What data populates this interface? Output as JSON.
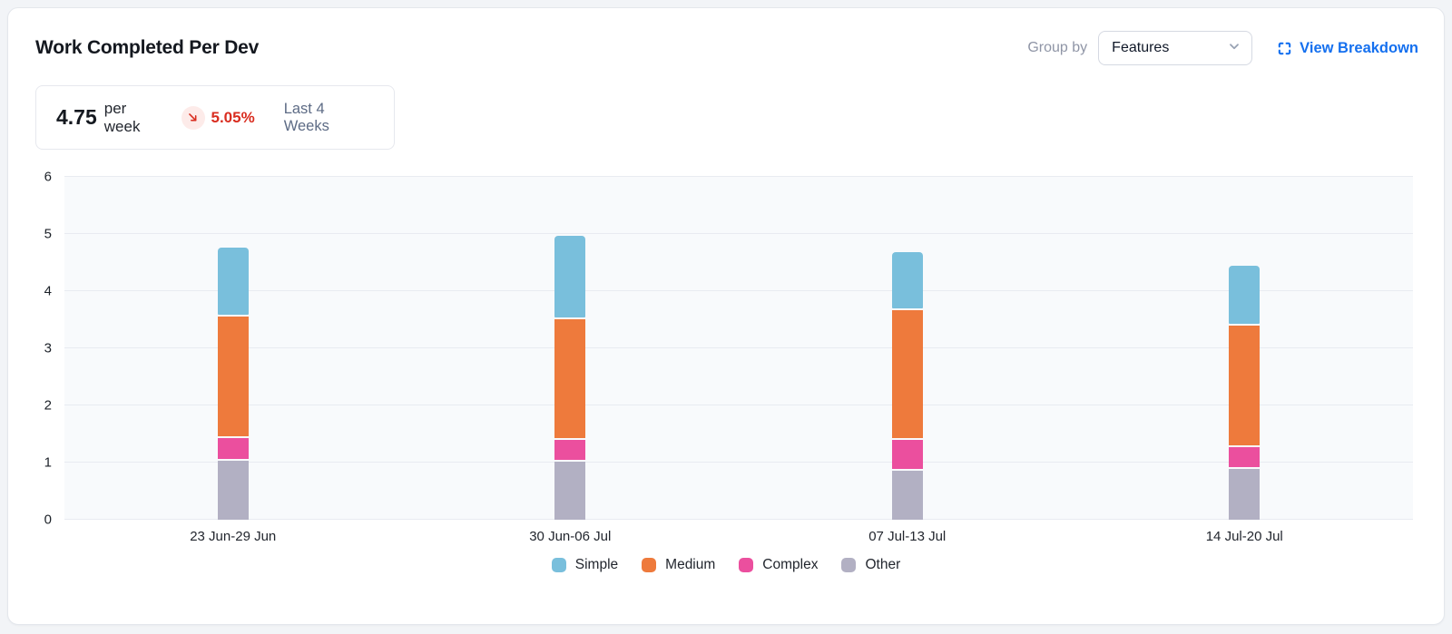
{
  "header": {
    "title": "Work Completed Per Dev",
    "group_by_label": "Group by",
    "group_by_value": "Features",
    "view_breakdown_label": "View Breakdown",
    "accent_blue": "#1570EF"
  },
  "stat": {
    "value": "4.75",
    "unit": "per week",
    "delta": "5.05%",
    "delta_direction": "down",
    "period": "Last 4 Weeks",
    "delta_color": "#D92D20",
    "delta_bg": "#FDEBE9"
  },
  "chart_data": {
    "type": "bar",
    "stacked": true,
    "title": "Work Completed Per Dev",
    "categories": [
      "23 Jun-29 Jun",
      "30 Jun-06 Jul",
      "07 Jul-13 Jul",
      "14 Jul-20 Jul"
    ],
    "series": [
      {
        "name": "Simple",
        "color": "#79BFDC",
        "values": [
          1.19,
          1.45,
          1.0,
          1.03
        ]
      },
      {
        "name": "Medium",
        "color": "#EE7A3C",
        "values": [
          2.13,
          2.11,
          2.27,
          2.13
        ]
      },
      {
        "name": "Complex",
        "color": "#EB4F9E",
        "values": [
          0.39,
          0.37,
          0.53,
          0.37
        ]
      },
      {
        "name": "Other",
        "color": "#B2B0C3",
        "values": [
          1.05,
          1.04,
          0.88,
          0.91
        ]
      }
    ],
    "totals": [
      4.76,
      4.97,
      4.68,
      4.44
    ],
    "ylim": [
      0,
      6
    ],
    "yticks": [
      0,
      1,
      2,
      3,
      4,
      5,
      6
    ],
    "grid": true,
    "legend_position": "bottom",
    "plot_bg": "#F8FAFC",
    "grid_color": "#E8EBF1"
  }
}
